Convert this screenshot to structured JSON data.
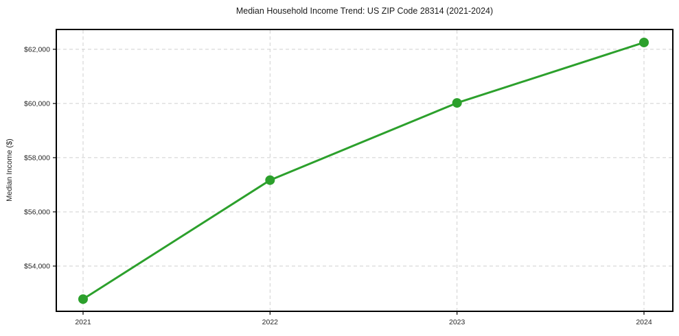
{
  "chart_data": {
    "type": "line",
    "title": "Median Household Income Trend: US ZIP Code 28314 (2021-2024)",
    "ylabel": "Median Income ($)",
    "xlabel": "",
    "x": [
      2021,
      2022,
      2023,
      2024
    ],
    "x_tick_labels": [
      "2021",
      "2022",
      "2023",
      "2024"
    ],
    "series": [
      {
        "name": "Median Household Income",
        "values": [
          52780,
          57170,
          60020,
          62250
        ]
      }
    ],
    "y_ticks": [
      {
        "value": 54000,
        "label": "$54,000"
      },
      {
        "value": 56000,
        "label": "$56,000"
      },
      {
        "value": 58000,
        "label": "$58,000"
      },
      {
        "value": 60000,
        "label": "$60,000"
      },
      {
        "value": 62000,
        "label": "$62,000"
      }
    ],
    "ylim": [
      52330,
      62730
    ],
    "grid": true,
    "grid_style": "dashed",
    "legend_position": "none",
    "marker": "circle",
    "colors": {
      "line": "#2ca02c",
      "marker": "#2ca02c",
      "grid": "#cfcfcf",
      "axis": "#000000",
      "tick_text": "#262626",
      "title_text": "#1a1a1a",
      "background": "#ffffff"
    }
  }
}
